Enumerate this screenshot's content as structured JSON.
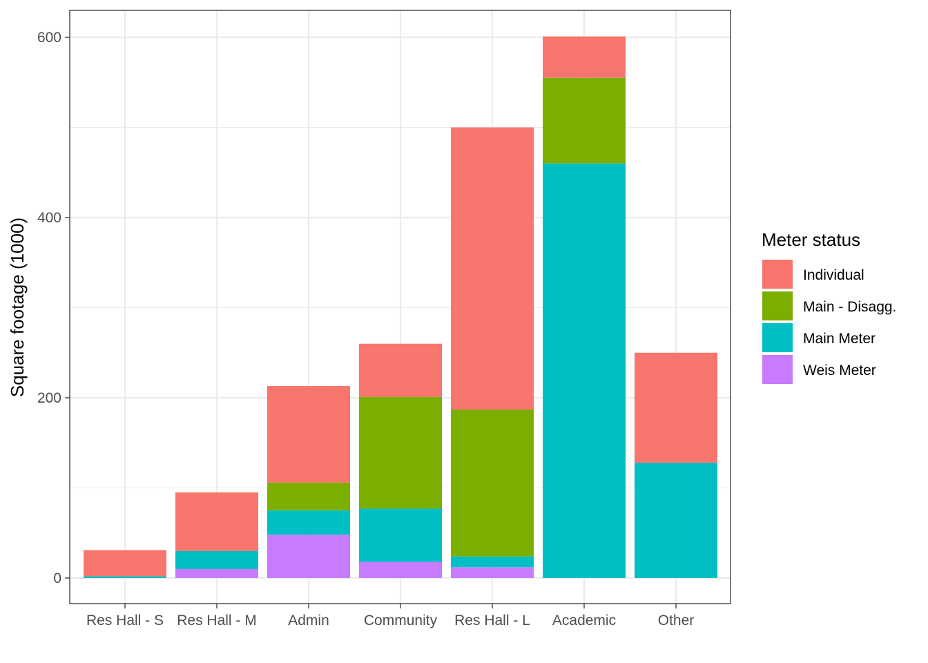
{
  "chart_data": {
    "type": "bar",
    "stacked": true,
    "title": "",
    "xlabel": "",
    "ylabel": "Square footage (1000)",
    "ylim": [
      -25,
      630
    ],
    "yticks": [
      0,
      200,
      400,
      600
    ],
    "grid": true,
    "legend_position": "right",
    "legend_title": "Meter status",
    "categories": [
      "Res Hall - S",
      "Res Hall - M",
      "Admin",
      "Community",
      "Res Hall - L",
      "Academic",
      "Other"
    ],
    "series": [
      {
        "name": "Weis Meter",
        "color": "#C77CFF",
        "values": [
          0,
          10,
          48,
          18,
          12,
          0,
          0
        ]
      },
      {
        "name": "Main Meter",
        "color": "#00BFC4",
        "values": [
          2,
          20,
          27,
          59,
          12,
          460,
          128
        ]
      },
      {
        "name": "Main - Disagg.",
        "color": "#7CAE00",
        "values": [
          0,
          0,
          31,
          124,
          163,
          95,
          0
        ]
      },
      {
        "name": "Individual",
        "color": "#F8766D",
        "values": [
          29,
          65,
          107,
          59,
          313,
          46,
          122
        ]
      }
    ],
    "legend_order": [
      "Individual",
      "Main - Disagg.",
      "Main Meter",
      "Weis Meter"
    ]
  }
}
